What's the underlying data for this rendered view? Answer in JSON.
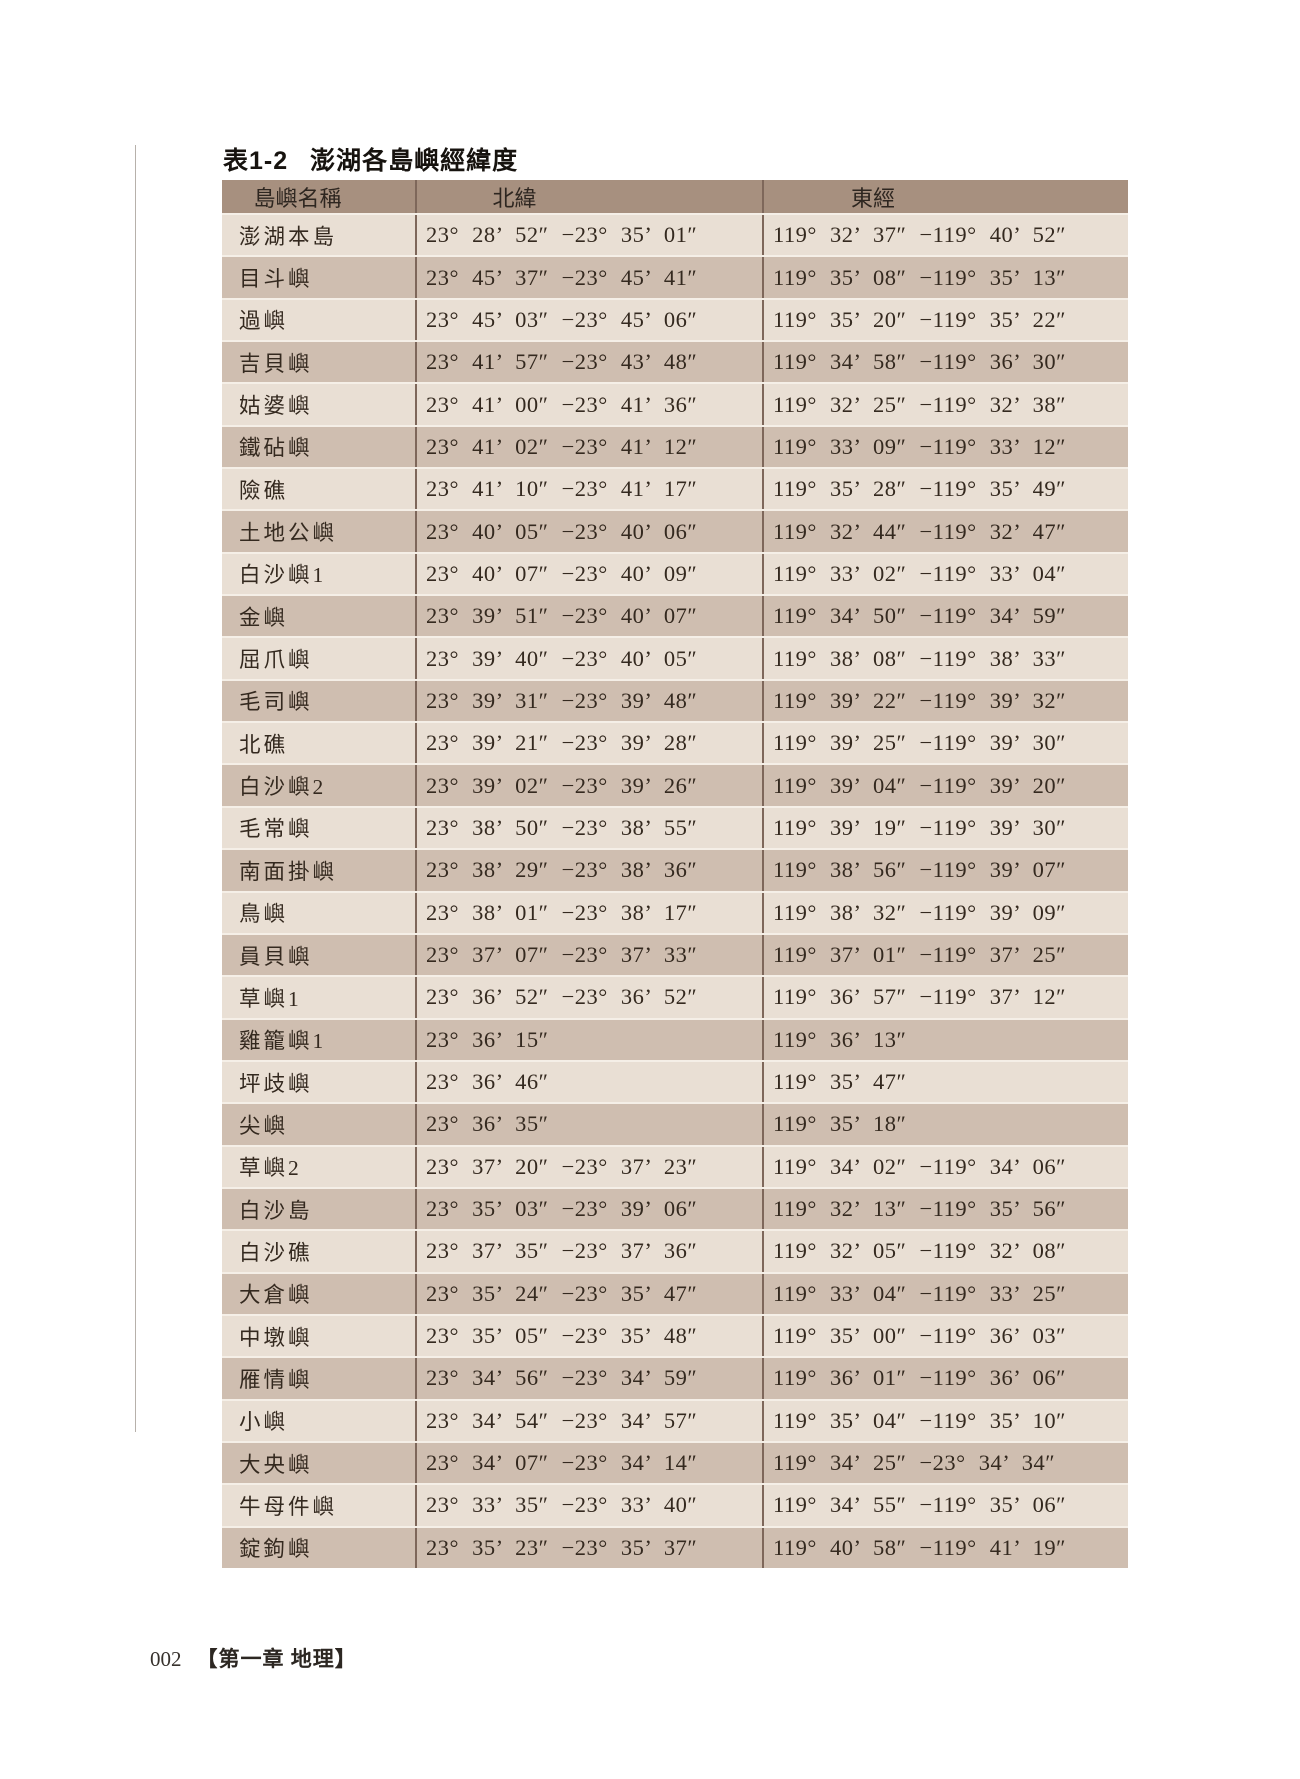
{
  "page": {
    "table_number": "表1-2",
    "table_caption": "澎湖各島嶼經緯度",
    "page_number": "002",
    "chapter": "【第一章 地理】"
  },
  "colors": {
    "header_bg": "#a7907f",
    "row_light": "#e9dfd4",
    "row_dark": "#cfbeb0",
    "column_divider": "#7e675a",
    "row_divider": "#f5efe7",
    "text": "#34291f"
  },
  "table": {
    "headers": [
      "島嶼名稱",
      "北緯",
      "東經"
    ],
    "rows": [
      {
        "name": "澎湖本島",
        "lat": "23° 28’ 52″ −23° 35’ 01″",
        "lng": "119° 32’ 37″ −119° 40’ 52″"
      },
      {
        "name": "目斗嶼",
        "lat": "23° 45’ 37″ −23° 45’ 41″",
        "lng": "119° 35’ 08″ −119° 35’ 13″"
      },
      {
        "name": "過嶼",
        "lat": "23° 45’ 03″ −23° 45’ 06″",
        "lng": "119° 35’ 20″ −119° 35’ 22″"
      },
      {
        "name": "吉貝嶼",
        "lat": "23° 41’ 57″ −23° 43’ 48″",
        "lng": "119° 34’ 58″ −119° 36’ 30″"
      },
      {
        "name": "姑婆嶼",
        "lat": "23° 41’ 00″ −23° 41’ 36″",
        "lng": "119° 32’ 25″ −119° 32’ 38″"
      },
      {
        "name": "鐵砧嶼",
        "lat": "23° 41’ 02″ −23° 41’ 12″",
        "lng": "119° 33’ 09″ −119° 33’ 12″"
      },
      {
        "name": "險礁",
        "lat": "23° 41’ 10″ −23° 41’ 17″",
        "lng": "119° 35’ 28″ −119° 35’ 49″"
      },
      {
        "name": "土地公嶼",
        "lat": "23° 40’ 05″ −23° 40’ 06″",
        "lng": "119° 32’ 44″ −119° 32’ 47″"
      },
      {
        "name": "白沙嶼1",
        "lat": "23° 40’ 07″ −23° 40’ 09″",
        "lng": "119° 33’ 02″ −119° 33’ 04″"
      },
      {
        "name": "金嶼",
        "lat": "23° 39’ 51″ −23° 40’ 07″",
        "lng": "119° 34’ 50″ −119° 34’ 59″"
      },
      {
        "name": "屈爪嶼",
        "lat": "23° 39’ 40″ −23° 40’ 05″",
        "lng": "119° 38’ 08″ −119° 38’ 33″"
      },
      {
        "name": "毛司嶼",
        "lat": "23° 39’ 31″ −23° 39’ 48″",
        "lng": "119° 39’ 22″ −119° 39’ 32″"
      },
      {
        "name": "北礁",
        "lat": "23° 39’ 21″ −23° 39’ 28″",
        "lng": "119° 39’ 25″ −119° 39’ 30″"
      },
      {
        "name": "白沙嶼2",
        "lat": "23° 39’ 02″ −23° 39’ 26″",
        "lng": "119° 39’ 04″ −119° 39’ 20″"
      },
      {
        "name": "毛常嶼",
        "lat": "23° 38’ 50″ −23° 38’ 55″",
        "lng": "119° 39’ 19″ −119° 39’ 30″"
      },
      {
        "name": "南面掛嶼",
        "lat": "23° 38’ 29″ −23° 38’ 36″",
        "lng": "119° 38’ 56″ −119° 39’ 07″"
      },
      {
        "name": "鳥嶼",
        "lat": "23° 38’ 01″ −23° 38’ 17″",
        "lng": "119° 38’ 32″ −119° 39’ 09″"
      },
      {
        "name": "員貝嶼",
        "lat": "23° 37’ 07″ −23° 37’ 33″",
        "lng": "119° 37’ 01″ −119° 37’ 25″"
      },
      {
        "name": "草嶼1",
        "lat": "23° 36’ 52″ −23° 36’ 52″",
        "lng": "119° 36’ 57″ −119° 37’ 12″"
      },
      {
        "name": "雞籠嶼1",
        "lat": "23° 36’ 15″",
        "lng": "119° 36’ 13″"
      },
      {
        "name": "坪歧嶼",
        "lat": "23° 36’ 46″",
        "lng": "119° 35’ 47″"
      },
      {
        "name": "尖嶼",
        "lat": "23° 36’ 35″",
        "lng": "119° 35’ 18″"
      },
      {
        "name": "草嶼2",
        "lat": "23° 37’ 20″ −23° 37’ 23″",
        "lng": "119° 34’ 02″ −119° 34’ 06″"
      },
      {
        "name": "白沙島",
        "lat": "23° 35’ 03″ −23° 39’ 06″",
        "lng": "119° 32’ 13″ −119° 35’ 56″"
      },
      {
        "name": "白沙礁",
        "lat": "23° 37’ 35″ −23° 37’ 36″",
        "lng": "119° 32’ 05″ −119° 32’ 08″"
      },
      {
        "name": "大倉嶼",
        "lat": "23° 35’ 24″ −23° 35’ 47″",
        "lng": "119° 33’ 04″ −119° 33’ 25″"
      },
      {
        "name": "中墩嶼",
        "lat": "23° 35’ 05″ −23° 35’ 48″",
        "lng": "119° 35’ 00″ −119° 36’ 03″"
      },
      {
        "name": "雁情嶼",
        "lat": "23° 34’ 56″ −23° 34’ 59″",
        "lng": "119° 36’ 01″ −119° 36’ 06″"
      },
      {
        "name": "小嶼",
        "lat": "23° 34’ 54″ −23° 34’ 57″",
        "lng": "119° 35’ 04″ −119° 35’ 10″"
      },
      {
        "name": "大央嶼",
        "lat": "23° 34’ 07″ −23° 34’ 14″",
        "lng": "119° 34’ 25″ −23° 34’ 34″"
      },
      {
        "name": "牛母件嶼",
        "lat": "23° 33’ 35″ −23° 33’ 40″",
        "lng": "119° 34’ 55″ −119° 35’ 06″"
      },
      {
        "name": "錠鉤嶼",
        "lat": "23° 35’ 23″ −23° 35’ 37″",
        "lng": "119° 40’ 58″ −119° 41’ 19″"
      }
    ]
  }
}
